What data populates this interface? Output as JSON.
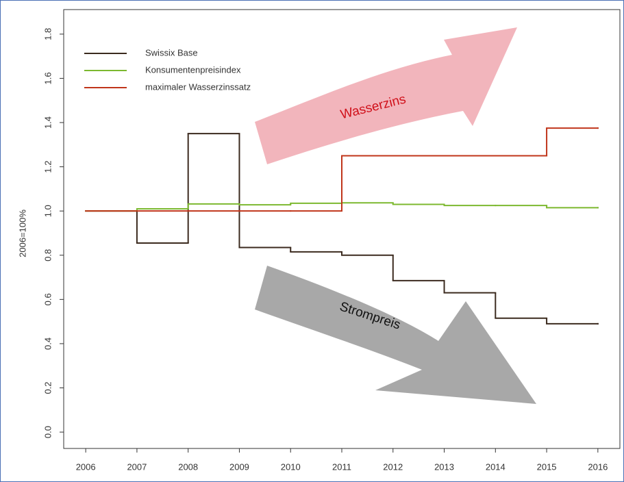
{
  "chart_data": {
    "type": "line",
    "step": true,
    "ylabel": "2006=100%",
    "x": [
      2006,
      2007,
      2008,
      2009,
      2010,
      2011,
      2012,
      2013,
      2014,
      2015,
      2016
    ],
    "series": [
      {
        "name": "Swissix Base",
        "color": "#3b2a1e",
        "values": [
          1.0,
          0.855,
          1.35,
          0.835,
          0.815,
          0.8,
          0.685,
          0.63,
          0.515,
          0.49,
          0.49
        ]
      },
      {
        "name": "Konsumentenpreisindex",
        "color": "#7cb82f",
        "values": [
          1.0,
          1.01,
          1.032,
          1.028,
          1.035,
          1.037,
          1.03,
          1.025,
          1.025,
          1.015,
          1.015
        ]
      },
      {
        "name": "maximaler Wasserzinssatz",
        "color": "#c0351a",
        "values": [
          1.0,
          1.0,
          1.0,
          1.0,
          1.0,
          1.25,
          1.25,
          1.25,
          1.25,
          1.375,
          1.375
        ]
      }
    ],
    "xlim": [
      2005.57,
      2016.43
    ],
    "ylim": [
      -0.074,
      1.911
    ],
    "xticks": [
      2006,
      2007,
      2008,
      2009,
      2010,
      2011,
      2012,
      2013,
      2014,
      2015,
      2016
    ],
    "yticks": [
      {
        "value": 0,
        "label": "0.0"
      },
      0.2,
      0.4,
      0.6,
      0.8,
      {
        "value": 1,
        "label": "1.0"
      },
      1.2,
      1.4,
      1.6,
      1.8
    ],
    "annotations": [
      "Wasserzins",
      "Strompreis"
    ],
    "legend": "top-left"
  }
}
